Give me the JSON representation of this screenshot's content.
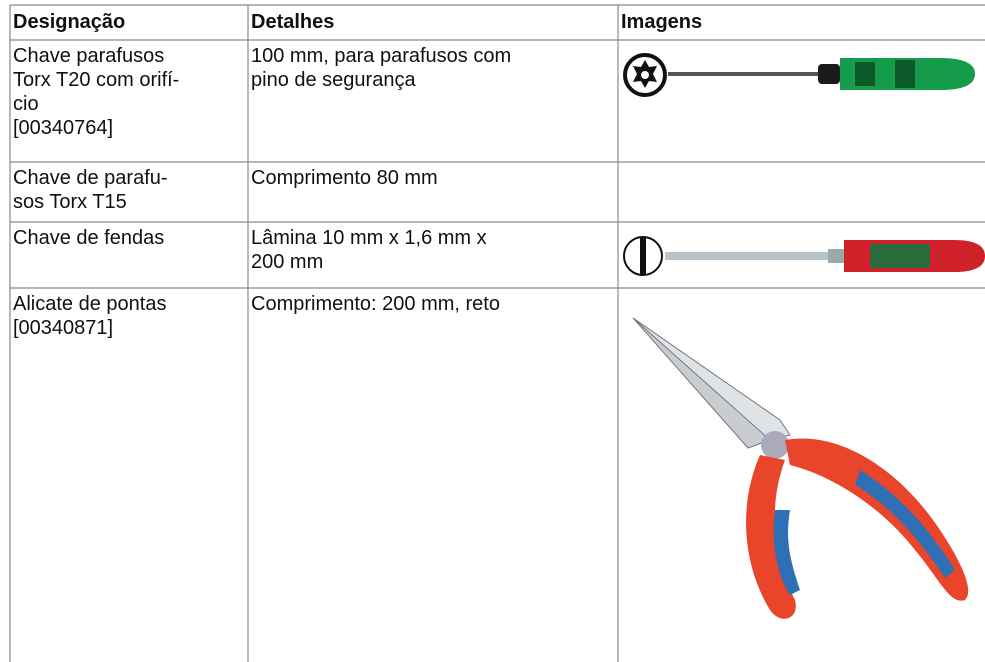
{
  "table": {
    "header": [
      "Designação",
      "Detalhes",
      "Imagens"
    ],
    "rows": [
      [
        [
          "Chave parafusos",
          "Torx T20 com orifí-",
          "cio",
          "[00340764]"
        ],
        [
          "100 mm, para parafusos com",
          "pino de segurança"
        ]
      ],
      [
        [
          "Chave de parafu-",
          "sos Torx T15"
        ],
        [
          "Comprimento 80 mm"
        ]
      ],
      [
        [
          "Chave de fendas"
        ],
        [
          "Lâmina 10 mm x 1,6 mm x",
          "200 mm"
        ]
      ],
      [
        [
          "Alicate de pontas",
          "[00340871]"
        ],
        [
          "Comprimento: 200 mm, reto"
        ]
      ]
    ]
  }
}
